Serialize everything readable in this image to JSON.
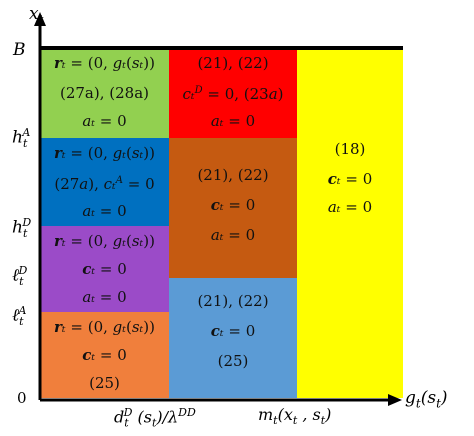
{
  "axes": {
    "y_title": "x_t",
    "x_title": "g_t(s_t)",
    "y_ticks": [
      "B",
      "h_t^A",
      "h_t^D",
      "ℓ_t^D",
      "ℓ_t^A",
      "0"
    ],
    "x_ticks": [
      "d_t^D(s_t)/λ^DD",
      "m_t(x_t , s_t)"
    ]
  },
  "cells": [
    {
      "name": "green-region",
      "color": "#92D050",
      "lines": [
        "r_t = (0, g_t(s_t))",
        "(27a), (28a)",
        "a_t = 0"
      ]
    },
    {
      "name": "blue-region",
      "color": "#0070C0",
      "lines": [
        "r_t = (0, g_t(s_t))",
        "(27a), c_t^A = 0",
        "a_t = 0"
      ]
    },
    {
      "name": "purple-region",
      "color": "#9B4BC8",
      "lines": [
        "r_t = (0, g_t(s_t))",
        "c_t = 0",
        "a_t = 0"
      ]
    },
    {
      "name": "orange-region",
      "color": "#F07F3C",
      "lines": [
        "r_t = (0, g_t(s_t))",
        "c_t = 0",
        "(25)"
      ]
    },
    {
      "name": "red-region",
      "color": "#FF0000",
      "lines": [
        "(21), (22)",
        "c_t^D = 0, (23a)",
        "a_t = 0"
      ]
    },
    {
      "name": "brown-region",
      "color": "#C55A11",
      "lines": [
        "(21), (22)",
        "c_t = 0",
        "a_t = 0"
      ]
    },
    {
      "name": "lightblue-region",
      "color": "#5B9BD5",
      "lines": [
        "(21), (22)",
        "c_t = 0",
        "(25)"
      ]
    },
    {
      "name": "yellow-region",
      "color": "#FFFF00",
      "lines": [
        "(18)",
        "c_t = 0",
        "a_t = 0"
      ]
    }
  ]
}
